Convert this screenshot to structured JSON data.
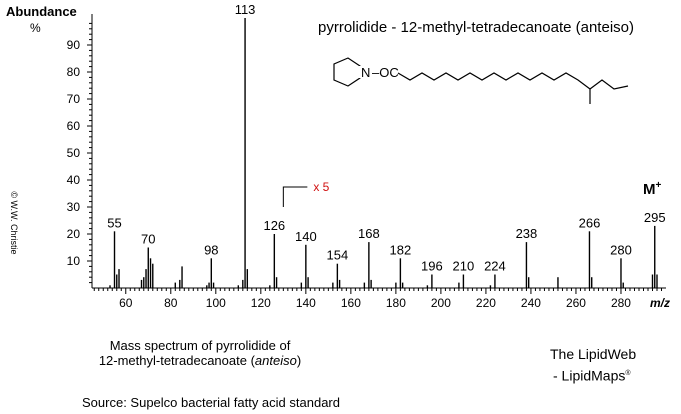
{
  "chart_data": {
    "type": "bar",
    "title": "pyrrolidide - 12-methyl-tetradecanoate (anteiso)",
    "ylabel": "Abundance",
    "yunit": "%",
    "xlabel": "m/z",
    "xlim": [
      45,
      300
    ],
    "ylim": [
      0,
      100
    ],
    "xticks": [
      60,
      80,
      100,
      120,
      140,
      160,
      180,
      200,
      220,
      240,
      260,
      280
    ],
    "yticks": [
      10,
      20,
      30,
      40,
      50,
      60,
      70,
      80,
      90
    ],
    "peaks": [
      {
        "x": 53,
        "y": 1
      },
      {
        "x": 55,
        "y": 21
      },
      {
        "x": 56,
        "y": 5
      },
      {
        "x": 57,
        "y": 7
      },
      {
        "x": 67,
        "y": 3
      },
      {
        "x": 68,
        "y": 4
      },
      {
        "x": 69,
        "y": 7
      },
      {
        "x": 70,
        "y": 15
      },
      {
        "x": 71,
        "y": 11
      },
      {
        "x": 72,
        "y": 9
      },
      {
        "x": 82,
        "y": 2
      },
      {
        "x": 84,
        "y": 3
      },
      {
        "x": 85,
        "y": 8
      },
      {
        "x": 96,
        "y": 1
      },
      {
        "x": 97,
        "y": 2
      },
      {
        "x": 98,
        "y": 11
      },
      {
        "x": 99,
        "y": 2
      },
      {
        "x": 110,
        "y": 1
      },
      {
        "x": 112,
        "y": 3
      },
      {
        "x": 113,
        "y": 100
      },
      {
        "x": 114,
        "y": 7
      },
      {
        "x": 124,
        "y": 1
      },
      {
        "x": 126,
        "y": 20
      },
      {
        "x": 127,
        "y": 4
      },
      {
        "x": 138,
        "y": 2
      },
      {
        "x": 140,
        "y": 16
      },
      {
        "x": 141,
        "y": 4
      },
      {
        "x": 152,
        "y": 2
      },
      {
        "x": 154,
        "y": 9
      },
      {
        "x": 155,
        "y": 3
      },
      {
        "x": 166,
        "y": 2
      },
      {
        "x": 168,
        "y": 17
      },
      {
        "x": 169,
        "y": 3
      },
      {
        "x": 180,
        "y": 2
      },
      {
        "x": 182,
        "y": 11
      },
      {
        "x": 183,
        "y": 2
      },
      {
        "x": 194,
        "y": 1
      },
      {
        "x": 196,
        "y": 5
      },
      {
        "x": 208,
        "y": 2
      },
      {
        "x": 210,
        "y": 5
      },
      {
        "x": 222,
        "y": 1
      },
      {
        "x": 224,
        "y": 5
      },
      {
        "x": 238,
        "y": 17
      },
      {
        "x": 239,
        "y": 4
      },
      {
        "x": 252,
        "y": 4
      },
      {
        "x": 266,
        "y": 21
      },
      {
        "x": 267,
        "y": 4
      },
      {
        "x": 280,
        "y": 11
      },
      {
        "x": 281,
        "y": 2
      },
      {
        "x": 294,
        "y": 5
      },
      {
        "x": 295,
        "y": 23
      },
      {
        "x": 296,
        "y": 5
      }
    ],
    "peak_labels": [
      {
        "x": 55,
        "text": "55"
      },
      {
        "x": 70,
        "text": "70"
      },
      {
        "x": 98,
        "text": "98"
      },
      {
        "x": 113,
        "text": "113"
      },
      {
        "x": 126,
        "text": "126"
      },
      {
        "x": 140,
        "text": "140"
      },
      {
        "x": 154,
        "text": "154"
      },
      {
        "x": 168,
        "text": "168"
      },
      {
        "x": 182,
        "text": "182"
      },
      {
        "x": 196,
        "text": "196"
      },
      {
        "x": 210,
        "text": "210"
      },
      {
        "x": 224,
        "text": "224"
      },
      {
        "x": 238,
        "text": "238"
      },
      {
        "x": 266,
        "text": "266"
      },
      {
        "x": 280,
        "text": "280"
      },
      {
        "x": 295,
        "text": "295"
      }
    ],
    "scale_marker": {
      "text": "x 5",
      "from_x": 130
    },
    "molecular_ion": {
      "label": "M",
      "superscript": "+"
    },
    "structure": {
      "ring_atom": "N",
      "linker": "–OC"
    },
    "copyright": "© W.W. Christie"
  },
  "caption": {
    "line1": "Mass spectrum of pyrrolidide of",
    "line2_prefix": "12-methyl-tetradecanoate (",
    "line2_italic": "anteiso",
    "line2_suffix": ")",
    "source": "Source: Supelco bacterial fatty acid standard"
  },
  "branding": {
    "line1": "The LipidWeb",
    "line2": "- LipidMaps",
    "mark": "®"
  },
  "colors": {
    "title": "#1a1ad4",
    "scale_marker": "#d01010",
    "axis": "#000000"
  }
}
